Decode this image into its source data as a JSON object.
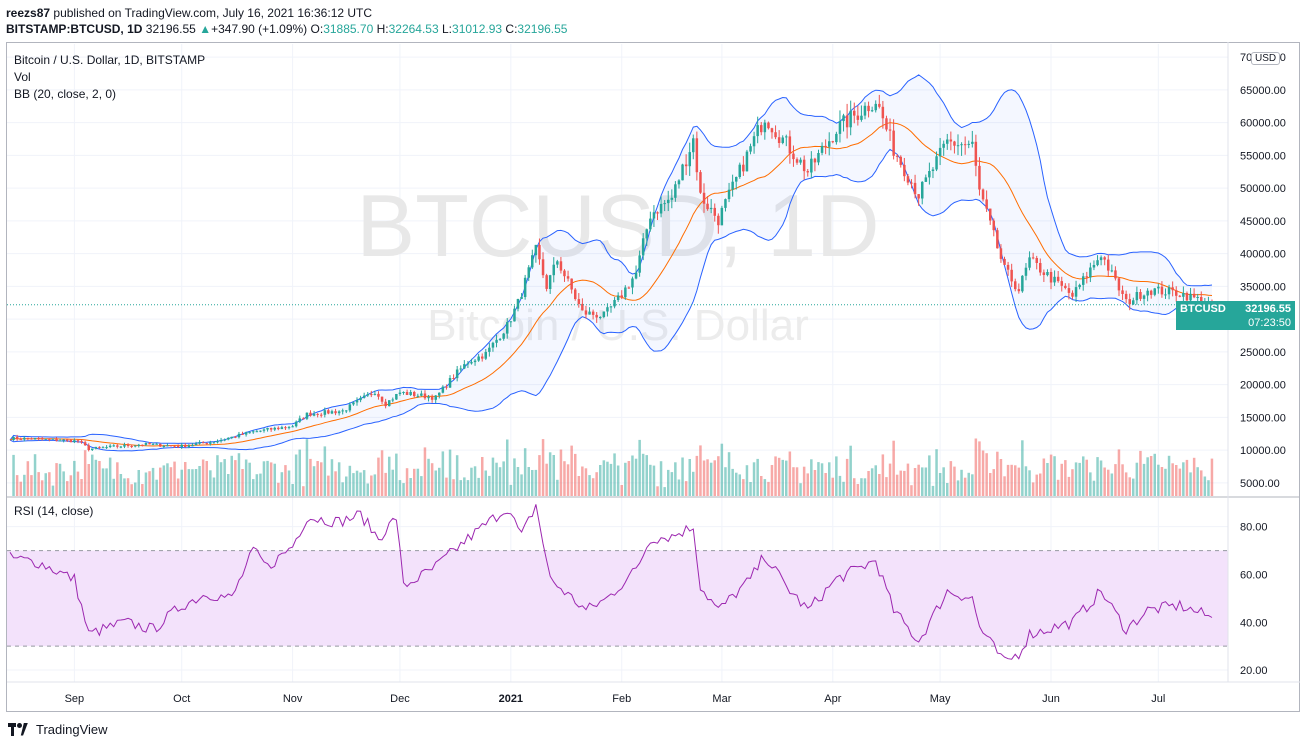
{
  "header": {
    "publisher": "reezs87",
    "published_text": "published on TradingView.com, July 16, 2021 16:36:12 UTC",
    "symbol": "BITSTAMP:BTCUSD, 1D",
    "last": "32196.55",
    "change": "+347.90 (+1.09%)",
    "o_label": "O:",
    "o": "31885.70",
    "h_label": "H:",
    "h": "32264.53",
    "l_label": "L:",
    "l": "31012.93",
    "c_label": "C:",
    "c": "32196.55"
  },
  "legend": {
    "main": "Bitcoin / U.S. Dollar, 1D, BITSTAMP",
    "vol": "Vol",
    "bb": "BB (20, close, 2, 0)",
    "rsi": "RSI (14, close)"
  },
  "watermark": {
    "symbol": "BTCUSD, 1D",
    "name": "Bitcoin / U.S. Dollar"
  },
  "currency": "USD",
  "price_label": {
    "ticker": "BTCUSD",
    "price": "32196.55",
    "countdown": "07:23:50"
  },
  "footer": {
    "brand": "TradingView"
  },
  "colors": {
    "up": "#26a69a",
    "down": "#ef5350",
    "bb_band": "#2962ff",
    "bb_basis": "#ff6d00",
    "rsi": "#9c27b0",
    "rsi_fill": "#f3e2fb"
  },
  "chart_data": {
    "type": "candlestick",
    "title": "Bitcoin / U.S. Dollar, 1D, BITSTAMP",
    "x_ticks": [
      "Sep",
      "Oct",
      "Nov",
      "Dec",
      "2021",
      "Feb",
      "Mar",
      "Apr",
      "May",
      "Jun",
      "Jul"
    ],
    "price_ticks": [
      "70000.00",
      "65000.00",
      "60000.00",
      "55000.00",
      "50000.00",
      "45000.00",
      "40000.00",
      "35000.00",
      "30000.00",
      "25000.00",
      "20000.00",
      "15000.00",
      "10000.00",
      "5000.00"
    ],
    "price_ylim": [
      3000,
      72000
    ],
    "rsi_ticks": [
      "80.00",
      "60.00",
      "40.00",
      "20.00"
    ],
    "rsi_ylim": [
      15,
      92
    ],
    "rsi_bands": [
      30,
      70
    ],
    "close_anchors": [
      [
        "2020-08-14",
        11800
      ],
      [
        "2020-08-20",
        11750
      ],
      [
        "2020-09-02",
        11400
      ],
      [
        "2020-09-05",
        10200
      ],
      [
        "2020-09-20",
        10900
      ],
      [
        "2020-10-01",
        10600
      ],
      [
        "2020-10-10",
        11300
      ],
      [
        "2020-10-21",
        12800
      ],
      [
        "2020-11-01",
        13700
      ],
      [
        "2020-11-05",
        15500
      ],
      [
        "2020-11-15",
        16000
      ],
      [
        "2020-11-24",
        19000
      ],
      [
        "2020-11-27",
        17100
      ],
      [
        "2020-12-01",
        18800
      ],
      [
        "2020-12-11",
        18000
      ],
      [
        "2020-12-16",
        21300
      ],
      [
        "2020-12-20",
        23500
      ],
      [
        "2020-12-25",
        24700
      ],
      [
        "2020-12-31",
        29000
      ],
      [
        "2021-01-03",
        32500
      ],
      [
        "2021-01-08",
        40500
      ],
      [
        "2021-01-11",
        35000
      ],
      [
        "2021-01-14",
        39000
      ],
      [
        "2021-01-21",
        31000
      ],
      [
        "2021-01-27",
        30500
      ],
      [
        "2021-01-31",
        33000
      ],
      [
        "2021-02-05",
        37000
      ],
      [
        "2021-02-09",
        46000
      ],
      [
        "2021-02-15",
        48500
      ],
      [
        "2021-02-21",
        57500
      ],
      [
        "2021-02-23",
        48800
      ],
      [
        "2021-02-28",
        45200
      ],
      [
        "2021-03-13",
        61000
      ],
      [
        "2021-03-25",
        52500
      ],
      [
        "2021-04-02",
        59000
      ],
      [
        "2021-04-13",
        63500
      ],
      [
        "2021-04-18",
        56000
      ],
      [
        "2021-04-25",
        49000
      ],
      [
        "2021-05-03",
        57000
      ],
      [
        "2021-05-10",
        56500
      ],
      [
        "2021-05-12",
        49500
      ],
      [
        "2021-05-19",
        37500
      ],
      [
        "2021-05-23",
        34500
      ],
      [
        "2021-05-26",
        39000
      ],
      [
        "2021-06-07",
        33500
      ],
      [
        "2021-06-15",
        40000
      ],
      [
        "2021-06-22",
        32500
      ],
      [
        "2021-06-28",
        34500
      ],
      [
        "2021-07-07",
        34000
      ],
      [
        "2021-07-16",
        32196.55
      ]
    ],
    "rsi_anchors": [
      [
        "2020-08-14",
        67
      ],
      [
        "2020-08-22",
        65
      ],
      [
        "2020-09-01",
        58
      ],
      [
        "2020-09-05",
        35
      ],
      [
        "2020-09-15",
        40
      ],
      [
        "2020-09-23",
        37
      ],
      [
        "2020-10-01",
        47
      ],
      [
        "2020-10-08",
        52
      ],
      [
        "2020-10-15",
        50
      ],
      [
        "2020-10-21",
        70
      ],
      [
        "2020-10-25",
        63
      ],
      [
        "2020-11-01",
        72
      ],
      [
        "2020-11-05",
        84
      ],
      [
        "2020-11-14",
        82
      ],
      [
        "2020-11-20",
        85
      ],
      [
        "2020-11-25",
        75
      ],
      [
        "2020-11-30",
        84
      ],
      [
        "2020-12-02",
        55
      ],
      [
        "2020-12-10",
        62
      ],
      [
        "2020-12-20",
        75
      ],
      [
        "2020-12-31",
        88
      ],
      [
        "2021-01-04",
        76
      ],
      [
        "2021-01-08",
        89
      ],
      [
        "2021-01-12",
        58
      ],
      [
        "2021-01-22",
        45
      ],
      [
        "2021-01-28",
        50
      ],
      [
        "2021-02-05",
        62
      ],
      [
        "2021-02-09",
        75
      ],
      [
        "2021-02-15",
        76
      ],
      [
        "2021-02-21",
        80
      ],
      [
        "2021-02-23",
        55
      ],
      [
        "2021-02-28",
        45
      ],
      [
        "2021-03-09",
        58
      ],
      [
        "2021-03-13",
        68
      ],
      [
        "2021-03-19",
        55
      ],
      [
        "2021-03-25",
        45
      ],
      [
        "2021-04-02",
        58
      ],
      [
        "2021-04-13",
        66
      ],
      [
        "2021-04-18",
        45
      ],
      [
        "2021-04-25",
        32
      ],
      [
        "2021-05-03",
        53
      ],
      [
        "2021-05-10",
        50
      ],
      [
        "2021-05-12",
        38
      ],
      [
        "2021-05-19",
        23
      ],
      [
        "2021-05-23",
        27
      ],
      [
        "2021-05-26",
        35
      ],
      [
        "2021-06-07",
        40
      ],
      [
        "2021-06-15",
        53
      ],
      [
        "2021-06-22",
        37
      ],
      [
        "2021-06-28",
        45
      ],
      [
        "2021-07-07",
        47
      ],
      [
        "2021-07-16",
        42
      ]
    ]
  }
}
